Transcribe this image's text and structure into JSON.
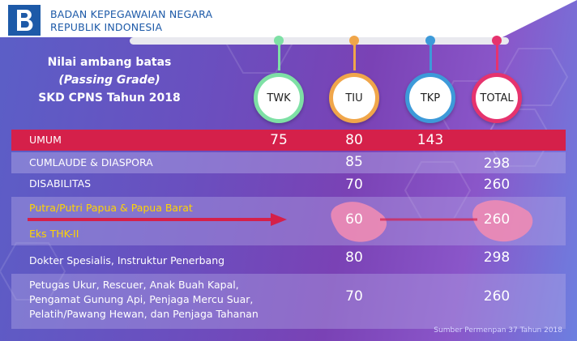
{
  "header": {
    "org_line1": "BADAN KEPEGAWAIAN NEGARA",
    "org_line2": "REPUBLIK INDONESIA"
  },
  "title": {
    "line1": "Nilai ambang batas",
    "line2": "(Passing Grade)",
    "line3": "SKD CPNS Tahun 2018"
  },
  "columns": [
    {
      "label": "TWK",
      "color": "#7ee0a5"
    },
    {
      "label": "TIU",
      "color": "#f0a64a"
    },
    {
      "label": "TKP",
      "color": "#3d9ad9"
    },
    {
      "label": "TOTAL",
      "color": "#e6336e"
    }
  ],
  "rows": [
    {
      "label": "UMUM",
      "twk": "75",
      "tiu": "80",
      "tkp": "143",
      "total": ""
    },
    {
      "label": "CUMLAUDE & DIASPORA",
      "twk": "",
      "tiu": "85",
      "tkp": "",
      "total": "298"
    },
    {
      "label": "DISABILITAS",
      "twk": "",
      "tiu": "70",
      "tkp": "",
      "total": "260"
    },
    {
      "label": "Putra/Putri Papua & Papua Barat",
      "label2": "Eks THK-II",
      "twk": "",
      "tiu": "60",
      "tkp": "",
      "total": "260"
    },
    {
      "label": "Dokter Spesialis, Instruktur Penerbang",
      "twk": "",
      "tiu": "80",
      "tkp": "",
      "total": "298"
    },
    {
      "label": "Petugas Ukur, Rescuer, Anak Buah Kapal,",
      "label2": "Pengamat Gunung Api, Penjaga Mercu Suar,",
      "label3": "Pelatih/Pawang Hewan, dan Penjaga Tahanan",
      "twk": "",
      "tiu": "70",
      "tkp": "",
      "total": "260"
    }
  ],
  "source": "Sumber Permenpan 37 Tahun 2018",
  "colors": {
    "header_row": "#d5204a",
    "highlight_text": "#ffd400",
    "brand_blue": "#1d5aa8"
  }
}
